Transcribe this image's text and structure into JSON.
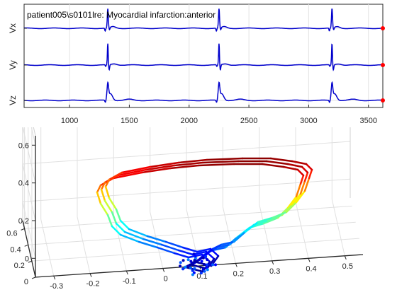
{
  "chart_data": [
    {
      "type": "line",
      "title": "patient005\\s0101lre: Myocardial infarction:anterior",
      "x_range": [
        620,
        3620
      ],
      "x_ticks": [
        1000,
        1500,
        2000,
        2500,
        3000,
        3500
      ],
      "beat_peaks_x": [
        1320,
        2250,
        3195
      ],
      "series": [
        {
          "name": "Vx",
          "color": "#0000cc",
          "marker_color": "#ff0000"
        },
        {
          "name": "Vy",
          "color": "#0000cc",
          "marker_color": "#ff0000"
        },
        {
          "name": "Vz",
          "color": "#0000cc",
          "marker_color": "#ff0000"
        }
      ],
      "grid": true
    },
    {
      "type": "line3d",
      "colormap": "jet",
      "xlim": [
        -0.35,
        0.55
      ],
      "ylim": [
        0,
        0.7
      ],
      "zlim": [
        -0.1,
        0.65
      ],
      "x_ticks": [
        -0.3,
        -0.2,
        -0.1,
        0,
        0.1,
        0.2,
        0.3,
        0.4,
        0.5
      ],
      "y_ticks": [
        0,
        0.2,
        0.4,
        0.6
      ],
      "z_ticks": [
        0,
        0.2,
        0.4,
        0.6
      ],
      "grid": true
    }
  ]
}
